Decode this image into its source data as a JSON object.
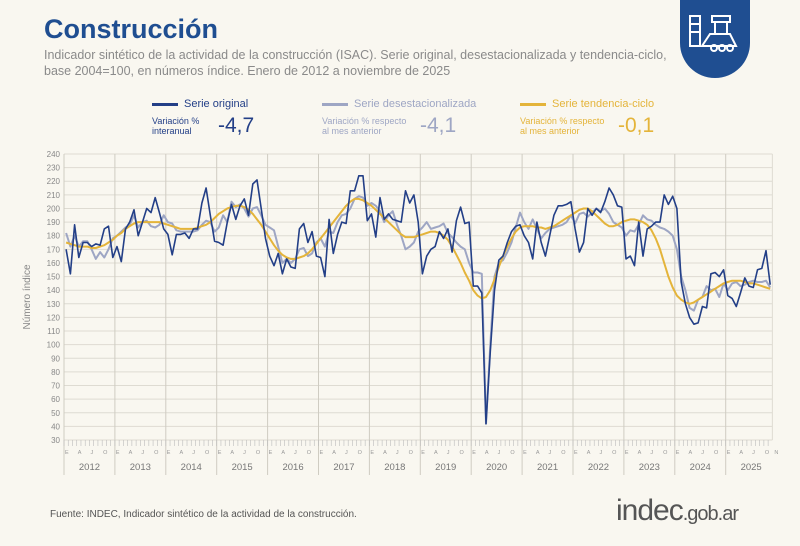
{
  "header": {
    "title": "Construcción",
    "subtitle": "Indicador sintético de la actividad de la construcción (ISAC). Serie original, desestacionalizada y tendencia-ciclo, base 2004=100, en números índice. Enero de 2012 a noviembre de 2025",
    "icon": "construction-icon"
  },
  "legend": [
    {
      "name": "Serie original",
      "label": "Variación % interanual",
      "value": "-4,7",
      "color": "#233f87"
    },
    {
      "name": "Serie desestacionalizada",
      "label": "Variación % respecto al mes anterior",
      "value": "-4,1",
      "color": "#9ea6c4"
    },
    {
      "name": "Serie tendencia-ciclo",
      "label": "Variación % respecto al mes anterior",
      "value": "-0,1",
      "color": "#e4b43a"
    }
  ],
  "footer": {
    "source": "Fuente: INDEC, Indicador sintético de la actividad de la construcción.",
    "logo": "indec.gob.ar"
  },
  "chart_data": {
    "type": "line",
    "ylabel": "Número índice",
    "ylim": [
      30,
      240
    ],
    "yticks": [
      30,
      40,
      50,
      60,
      70,
      80,
      90,
      100,
      110,
      120,
      130,
      140,
      150,
      160,
      170,
      180,
      190,
      200,
      210,
      220,
      230,
      240
    ],
    "years": [
      "2012",
      "2013",
      "2014",
      "2015",
      "2016",
      "2017",
      "2018",
      "2019",
      "2020",
      "2021",
      "2022",
      "2023",
      "2024",
      "2025"
    ],
    "month_labels": [
      "E",
      "A",
      "J",
      "O"
    ],
    "last_month_label": "N",
    "grid": true,
    "x_start": "2012-01",
    "x_end": "2025-11",
    "series": [
      {
        "name": "Serie original",
        "color": "#233f87",
        "values": [
          170,
          152,
          188,
          164,
          175,
          175,
          172,
          174,
          173,
          185,
          187,
          164,
          172,
          161,
          185,
          190,
          199,
          180,
          190,
          200,
          197,
          208,
          197,
          185,
          181,
          166,
          181,
          181,
          182,
          178,
          185,
          185,
          204,
          215,
          195,
          176,
          175,
          173,
          190,
          203,
          192,
          202,
          207,
          195,
          218,
          221,
          200,
          178,
          165,
          158,
          167,
          152,
          163,
          157,
          156,
          185,
          189,
          175,
          183,
          165,
          164,
          150,
          192,
          167,
          181,
          190,
          189,
          213,
          213,
          224,
          224,
          191,
          196,
          179,
          208,
          192,
          196,
          192,
          191,
          190,
          213,
          204,
          210,
          190,
          152,
          165,
          170,
          172,
          183,
          178,
          185,
          168,
          191,
          201,
          189,
          190,
          143,
          143,
          138,
          42,
          95,
          140,
          162,
          165,
          175,
          183,
          187,
          188,
          180,
          175,
          163,
          190,
          175,
          165,
          180,
          195,
          202,
          202,
          203,
          205,
          185,
          168,
          175,
          200,
          195,
          200,
          197,
          205,
          215,
          210,
          202,
          201,
          163,
          165,
          158,
          190,
          165,
          185,
          187,
          190,
          190,
          210,
          203,
          209,
          200,
          146,
          130,
          120,
          115,
          116,
          128,
          127,
          152,
          153,
          150,
          155,
          136,
          134,
          128,
          138,
          149,
          143,
          142,
          155,
          156,
          169,
          144
        ]
      },
      {
        "name": "Serie desestacionalizada",
        "color": "#9ea6c4",
        "values": [
          182,
          172,
          180,
          172,
          176,
          176,
          170,
          163,
          168,
          164,
          170,
          178,
          180,
          183,
          186,
          188,
          195,
          186,
          190,
          191,
          187,
          186,
          188,
          195,
          190,
          189,
          184,
          183,
          183,
          183,
          183,
          184,
          188,
          191,
          190,
          183,
          186,
          195,
          190,
          205,
          201,
          203,
          200,
          194,
          200,
          201,
          195,
          188,
          186,
          184,
          172,
          160,
          163,
          160,
          163,
          170,
          171,
          165,
          167,
          175,
          178,
          172,
          183,
          182,
          190,
          195,
          196,
          200,
          207,
          209,
          208,
          202,
          204,
          202,
          198,
          190,
          195,
          198,
          188,
          180,
          170,
          172,
          175,
          183,
          186,
          190,
          185,
          186,
          187,
          189,
          182,
          179,
          175,
          172,
          170,
          160,
          153,
          153,
          152,
          42,
          100,
          150,
          160,
          162,
          168,
          175,
          186,
          197,
          190,
          185,
          192,
          185,
          178,
          182,
          185,
          186,
          187,
          188,
          190,
          195,
          189,
          196,
          197,
          194,
          197,
          200,
          198,
          200,
          196,
          190,
          188,
          186,
          180,
          184,
          183,
          188,
          195,
          192,
          191,
          188,
          186,
          185,
          183,
          180,
          170,
          150,
          140,
          127,
          125,
          133,
          135,
          143,
          140,
          141,
          135,
          145,
          140,
          145,
          146,
          143,
          144,
          146,
          147,
          146,
          146,
          147,
          142
        ]
      },
      {
        "name": "Serie tendencia-ciclo",
        "color": "#e4b43a",
        "values": [
          175,
          174,
          173,
          172,
          172,
          172,
          171,
          171,
          172,
          173,
          175,
          177,
          180,
          182,
          185,
          187,
          189,
          190,
          190,
          190,
          190,
          190,
          190,
          189,
          188,
          187,
          186,
          185,
          185,
          185,
          185,
          186,
          187,
          188,
          190,
          193,
          196,
          198,
          200,
          201,
          202,
          202,
          201,
          199,
          196,
          192,
          188,
          183,
          178,
          173,
          169,
          166,
          164,
          163,
          163,
          164,
          165,
          167,
          170,
          174,
          178,
          182,
          186,
          190,
          194,
          198,
          202,
          205,
          207,
          207,
          206,
          204,
          202,
          199,
          196,
          193,
          190,
          187,
          184,
          181,
          179,
          179,
          179,
          180,
          181,
          182,
          183,
          183,
          182,
          180,
          177,
          172,
          166,
          160,
          153,
          147,
          140,
          136,
          134,
          135,
          140,
          148,
          157,
          165,
          172,
          178,
          183,
          186,
          187,
          187,
          187,
          186,
          186,
          185,
          186,
          187,
          189,
          191,
          193,
          195,
          197,
          199,
          200,
          200,
          198,
          195,
          192,
          189,
          187,
          187,
          188,
          190,
          191,
          192,
          192,
          191,
          190,
          188,
          184,
          178,
          170,
          160,
          150,
          142,
          136,
          133,
          131,
          130,
          131,
          133,
          135,
          137,
          139,
          141,
          143,
          145,
          146,
          147,
          147,
          147,
          146,
          145,
          145,
          144,
          143,
          142,
          141
        ]
      }
    ]
  }
}
